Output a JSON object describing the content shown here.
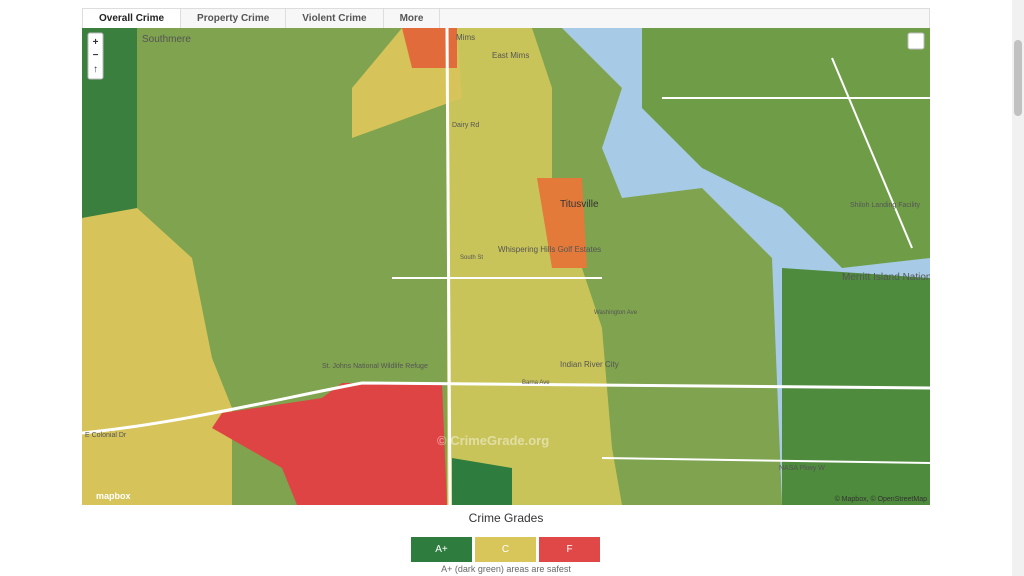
{
  "tabs": [
    "Overall Crime",
    "Property Crime",
    "Violent Crime",
    "More"
  ],
  "map": {
    "controls": [
      "+",
      "−",
      "↑"
    ],
    "labels": [
      "Southmere",
      "Mims",
      "East Mims",
      "Dairy Rd",
      "Titusville",
      "Whispering Hills Golf Estates",
      "Indian River City",
      "St. Johns National Wildlife Refuge",
      "Shiloh Landing Facility",
      "Merritt Island National Wildlife Refuge",
      "E Colonial Dr",
      "NASA Pkwy W",
      "South St",
      "Washington Ave",
      "Barna Ave",
      "© CrimeGrade.org"
    ],
    "logo": "mapbox",
    "attribution": "© Mapbox, © OpenStreetMap"
  },
  "legend": {
    "title": "Crime Grades",
    "grades": [
      {
        "label": "A+",
        "color": "#2e7d3e"
      },
      {
        "label": "C",
        "color": "#d9c65a"
      },
      {
        "label": "F",
        "color": "#e04848"
      }
    ],
    "note": "A+ (dark green) areas are safest"
  }
}
